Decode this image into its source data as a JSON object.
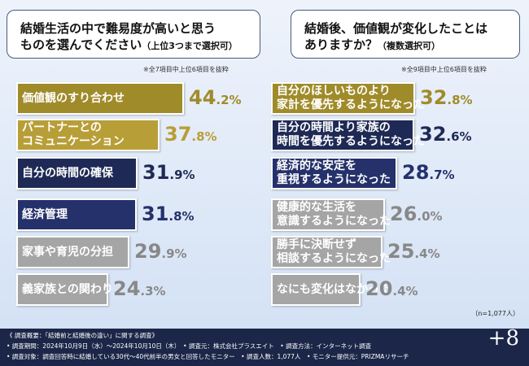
{
  "colors": {
    "gold": "#a08b2a",
    "gold_light": "#b89e37",
    "navy": "#1e2a55",
    "navy_mid": "#25316b",
    "gray": "#a5a5a5",
    "footer": "#1b2648"
  },
  "chart_data": [
    {
      "type": "bar",
      "title": "結婚生活の中で難易度が高いと思うものを選んでください（上位3つまで選択可）",
      "question_line1": "結婚生活の中で難易度が高いと思う",
      "question_line2": "ものを選んでください",
      "question_sub": "（上位3つまで選択可）",
      "note": "※全7項目中上位6項目を抜粋",
      "categories": [
        "価値観のすり合わせ",
        "パートナーとのコミュニケーション",
        "自分の時間の確保",
        "経済管理",
        "家事や育児の分担",
        "義家族との関わり"
      ],
      "label_lines": [
        [
          "価値観のすり合わせ"
        ],
        [
          "パートナーとの",
          "コミュニケーション"
        ],
        [
          "自分の時間の確保"
        ],
        [
          "経済管理"
        ],
        [
          "家事や育児の分担"
        ],
        [
          "義家族との関わり"
        ]
      ],
      "values": [
        44.2,
        37.8,
        31.9,
        31.8,
        29.9,
        24.3
      ],
      "value_int": [
        "44",
        "37",
        "31",
        "31",
        "29",
        "24"
      ],
      "value_dec": [
        ".2%",
        ".8%",
        ".9%",
        ".8%",
        ".9%",
        ".3%"
      ],
      "unit": "%"
    },
    {
      "type": "bar",
      "title": "結婚後、価値観が変化したことはありますか？（複数選択可）",
      "question_line1": "結婚後、価値観が変化したことは",
      "question_line2": "ありますか？",
      "question_sub": "（複数選択可）",
      "note": "※全9項目中上位6項目を抜粋",
      "categories": [
        "自分のほしいものより家計を優先するようになった",
        "自分の時間より家族の時間を優先するようになった",
        "経済的な安定を重視するようになった",
        "健康的な生活を意識するようになった",
        "勝手に決断せず相談するようになった",
        "なにも変化はなかった"
      ],
      "label_lines": [
        [
          "自分のほしいものより",
          "家計を優先するようになった"
        ],
        [
          "自分の時間より家族の",
          "時間を優先するようになった"
        ],
        [
          "経済的な安定を",
          "重視するようになった"
        ],
        [
          "健康的な生活を",
          "意識するようになった"
        ],
        [
          "勝手に決断せず",
          "相談するようになった"
        ],
        [
          "なにも変化はなかった"
        ]
      ],
      "values": [
        32.8,
        32.6,
        28.7,
        26.0,
        25.4,
        20.4
      ],
      "value_int": [
        "32",
        "32",
        "28",
        "26",
        "25",
        "20"
      ],
      "value_dec": [
        ".8%",
        ".6%",
        ".7%",
        ".0%",
        ".4%",
        ".4%"
      ],
      "unit": "%"
    }
  ],
  "sample_size": "（n=1,077人）",
  "footer": {
    "line1": "《 調査概要：「結婚前と結婚後の違い」に関する調査》",
    "line2": "• 調査期間：2024年10月9日（水）〜2024年10月10日（木）　• 調査元：株式会社プラスエイト　• 調査方法：インターネット調査",
    "line3": "• 調査対象：調査回答時に結婚している30代〜40代前半の男女と回答したモニター　• 調査人数：1,077人　• モニター提供元：PRIZMAリサーチ",
    "logo": "+8"
  }
}
